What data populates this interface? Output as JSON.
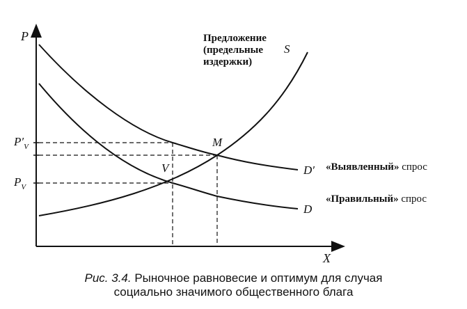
{
  "axes": {
    "y_label": "P",
    "x_label": "X",
    "p_prime_label": "P′",
    "p_prime_sub": "V",
    "p_label": "P",
    "p_sub": "V"
  },
  "curves": {
    "supply_label_line1": "Предложение",
    "supply_label_line2": "(предельные",
    "supply_label_line3": "издержки)",
    "supply_letter": "S",
    "revealed_letter": "D′",
    "correct_letter": "D",
    "revealed_name_quote": "«Выявленный»",
    "revealed_name_rest": " спрос",
    "correct_name_quote": "«Правильный»",
    "correct_name_rest": " спрос"
  },
  "points": {
    "market": "M",
    "optimum": "V"
  },
  "caption": {
    "fig_num": "Рис. 3.4.",
    "line1_rest": " Рыночное равновесие и оптимум для случая",
    "line2": "социально значимого общественного блага"
  },
  "colors": {
    "ink": "#111111",
    "background": "#ffffff"
  }
}
